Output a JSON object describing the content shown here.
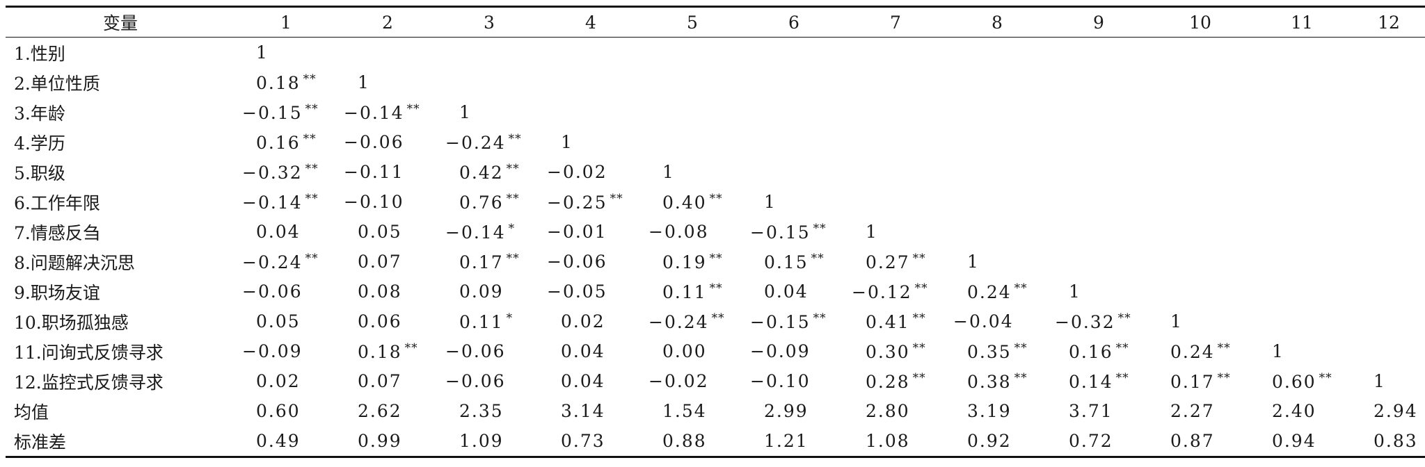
{
  "table": {
    "headers": [
      "变量",
      "1",
      "2",
      "3",
      "4",
      "5",
      "6",
      "7",
      "8",
      "9",
      "10",
      "11",
      "12"
    ],
    "rows": [
      {
        "label": "1.性别",
        "cells": [
          {
            "v": "1",
            "s": ""
          }
        ]
      },
      {
        "label": "2.单位性质",
        "cells": [
          {
            "v": "0.18",
            "s": "**"
          },
          {
            "v": "1",
            "s": ""
          }
        ]
      },
      {
        "label": "3.年龄",
        "cells": [
          {
            "v": "−0.15",
            "s": "**"
          },
          {
            "v": "−0.14",
            "s": "**"
          },
          {
            "v": "1",
            "s": ""
          }
        ]
      },
      {
        "label": "4.学历",
        "cells": [
          {
            "v": "0.16",
            "s": "**"
          },
          {
            "v": "−0.06",
            "s": ""
          },
          {
            "v": "−0.24",
            "s": "**"
          },
          {
            "v": "1",
            "s": ""
          }
        ]
      },
      {
        "label": "5.职级",
        "cells": [
          {
            "v": "−0.32",
            "s": "**"
          },
          {
            "v": "−0.11",
            "s": ""
          },
          {
            "v": "0.42",
            "s": "**"
          },
          {
            "v": "−0.02",
            "s": ""
          },
          {
            "v": "1",
            "s": ""
          }
        ]
      },
      {
        "label": "6.工作年限",
        "cells": [
          {
            "v": "−0.14",
            "s": "**"
          },
          {
            "v": "−0.10",
            "s": ""
          },
          {
            "v": "0.76",
            "s": "**"
          },
          {
            "v": "−0.25",
            "s": "**"
          },
          {
            "v": "0.40",
            "s": "**"
          },
          {
            "v": "1",
            "s": ""
          }
        ]
      },
      {
        "label": "7.情感反刍",
        "cells": [
          {
            "v": "0.04",
            "s": ""
          },
          {
            "v": "0.05",
            "s": ""
          },
          {
            "v": "−0.14",
            "s": "*"
          },
          {
            "v": "−0.01",
            "s": ""
          },
          {
            "v": "−0.08",
            "s": ""
          },
          {
            "v": "−0.15",
            "s": "**"
          },
          {
            "v": "1",
            "s": ""
          }
        ]
      },
      {
        "label": "8.问题解决沉思",
        "cells": [
          {
            "v": "−0.24",
            "s": "**"
          },
          {
            "v": "0.07",
            "s": ""
          },
          {
            "v": "0.17",
            "s": "**"
          },
          {
            "v": "−0.06",
            "s": ""
          },
          {
            "v": "0.19",
            "s": "**"
          },
          {
            "v": "0.15",
            "s": "**"
          },
          {
            "v": "0.27",
            "s": "**"
          },
          {
            "v": "1",
            "s": ""
          }
        ]
      },
      {
        "label": "9.职场友谊",
        "cells": [
          {
            "v": "−0.06",
            "s": ""
          },
          {
            "v": "0.08",
            "s": ""
          },
          {
            "v": "0.09",
            "s": ""
          },
          {
            "v": "−0.05",
            "s": ""
          },
          {
            "v": "0.11",
            "s": "**"
          },
          {
            "v": "0.04",
            "s": ""
          },
          {
            "v": "−0.12",
            "s": "**"
          },
          {
            "v": "0.24",
            "s": "**"
          },
          {
            "v": "1",
            "s": ""
          }
        ]
      },
      {
        "label": "10.职场孤独感",
        "cells": [
          {
            "v": "0.05",
            "s": ""
          },
          {
            "v": "0.06",
            "s": ""
          },
          {
            "v": "0.11",
            "s": "*"
          },
          {
            "v": "0.02",
            "s": ""
          },
          {
            "v": "−0.24",
            "s": "**"
          },
          {
            "v": "−0.15",
            "s": "**"
          },
          {
            "v": "0.41",
            "s": "**"
          },
          {
            "v": "−0.04",
            "s": ""
          },
          {
            "v": "−0.32",
            "s": "**"
          },
          {
            "v": "1",
            "s": ""
          }
        ]
      },
      {
        "label": "11.问询式反馈寻求",
        "cells": [
          {
            "v": "−0.09",
            "s": ""
          },
          {
            "v": "0.18",
            "s": "**"
          },
          {
            "v": "−0.06",
            "s": ""
          },
          {
            "v": "0.04",
            "s": ""
          },
          {
            "v": "0.00",
            "s": ""
          },
          {
            "v": "−0.09",
            "s": ""
          },
          {
            "v": "0.30",
            "s": "**"
          },
          {
            "v": "0.35",
            "s": "**"
          },
          {
            "v": "0.16",
            "s": "**"
          },
          {
            "v": "0.24",
            "s": "**"
          },
          {
            "v": "1",
            "s": ""
          }
        ]
      },
      {
        "label": "12.监控式反馈寻求",
        "cells": [
          {
            "v": "0.02",
            "s": ""
          },
          {
            "v": "0.07",
            "s": ""
          },
          {
            "v": "−0.06",
            "s": ""
          },
          {
            "v": "0.04",
            "s": ""
          },
          {
            "v": "−0.02",
            "s": ""
          },
          {
            "v": "−0.10",
            "s": ""
          },
          {
            "v": "0.28",
            "s": "**"
          },
          {
            "v": "0.38",
            "s": "**"
          },
          {
            "v": "0.14",
            "s": "**"
          },
          {
            "v": "0.17",
            "s": "**"
          },
          {
            "v": "0.60",
            "s": "**"
          },
          {
            "v": "1",
            "s": ""
          }
        ]
      },
      {
        "label": "均值",
        "cells": [
          {
            "v": "0.60",
            "s": ""
          },
          {
            "v": "2.62",
            "s": ""
          },
          {
            "v": "2.35",
            "s": ""
          },
          {
            "v": "3.14",
            "s": ""
          },
          {
            "v": "1.54",
            "s": ""
          },
          {
            "v": "2.99",
            "s": ""
          },
          {
            "v": "2.80",
            "s": ""
          },
          {
            "v": "3.19",
            "s": ""
          },
          {
            "v": "3.71",
            "s": ""
          },
          {
            "v": "2.27",
            "s": ""
          },
          {
            "v": "2.40",
            "s": ""
          },
          {
            "v": "2.94",
            "s": ""
          }
        ]
      },
      {
        "label": "标准差",
        "cells": [
          {
            "v": "0.49",
            "s": ""
          },
          {
            "v": "0.99",
            "s": ""
          },
          {
            "v": "1.09",
            "s": ""
          },
          {
            "v": "0.73",
            "s": ""
          },
          {
            "v": "0.88",
            "s": ""
          },
          {
            "v": "1.21",
            "s": ""
          },
          {
            "v": "1.08",
            "s": ""
          },
          {
            "v": "0.92",
            "s": ""
          },
          {
            "v": "0.72",
            "s": ""
          },
          {
            "v": "0.87",
            "s": ""
          },
          {
            "v": "0.94",
            "s": ""
          },
          {
            "v": "0.83",
            "s": ""
          }
        ]
      }
    ]
  }
}
